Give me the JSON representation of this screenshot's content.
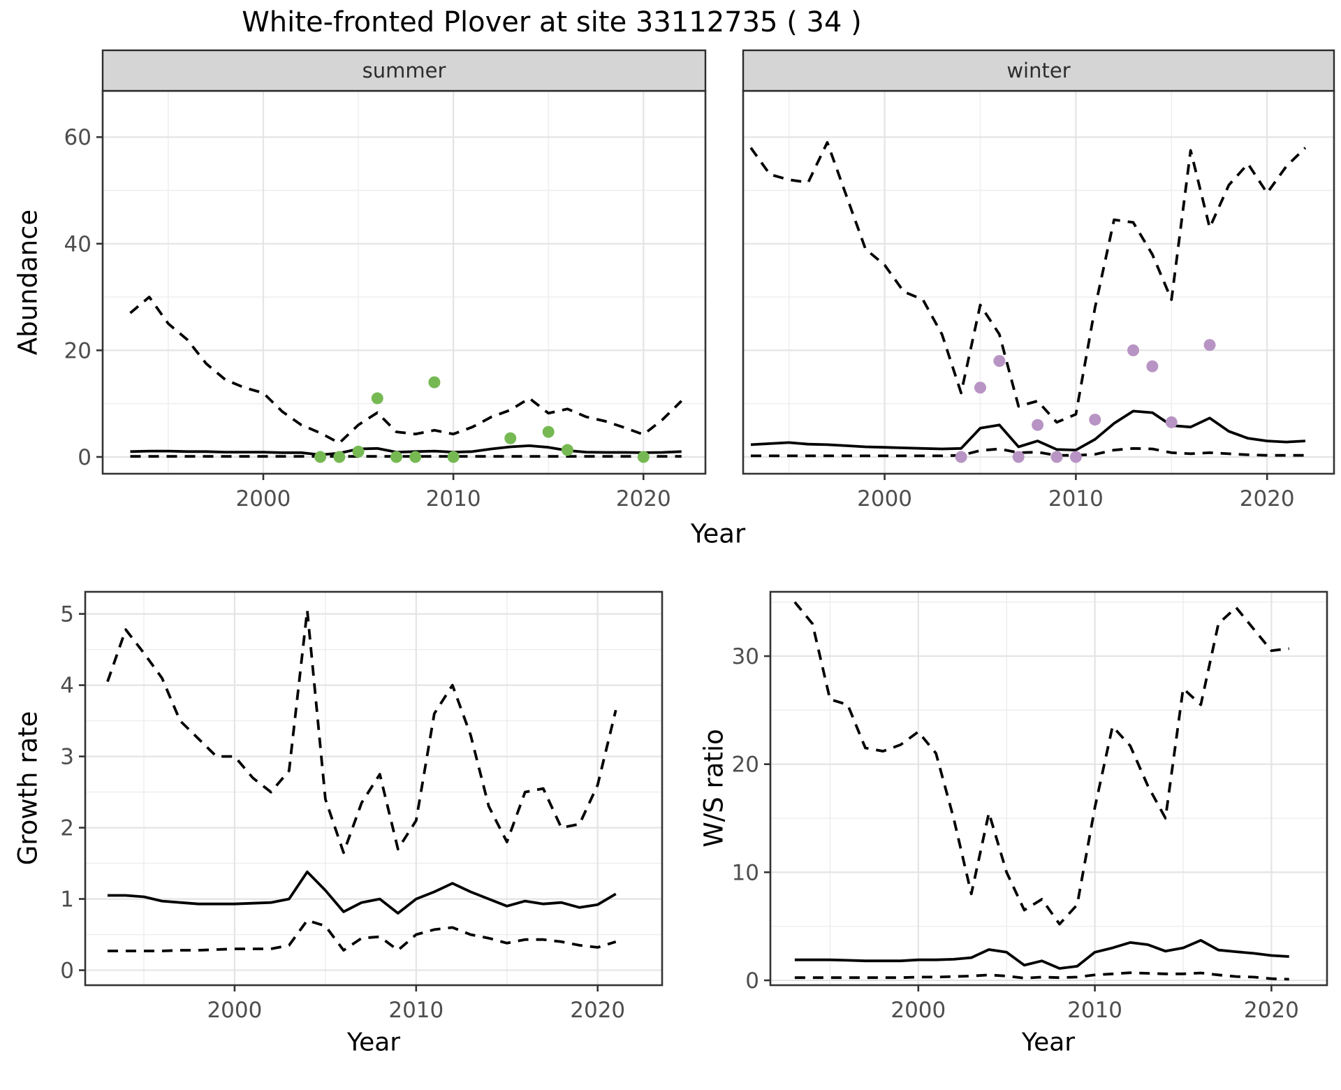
{
  "title": "White-fronted Plover at site 33112735 ( 34 )",
  "colors": {
    "summer_points": "#76b953",
    "winter_points": "#b894c4",
    "line": "#000000",
    "grid_major": "#e4e4e4",
    "grid_minor": "#ededed",
    "strip_bg": "#d5d5d5",
    "border": "#333333",
    "axis_text": "#4d4d4d"
  },
  "top_axis": {
    "ylabel": "Abundance",
    "xlabel": "Year"
  },
  "chart_data": [
    {
      "type": "line",
      "facet": "summer",
      "xlabel": "Year",
      "ylabel": "Abundance",
      "xlim": [
        1991.55,
        2023.26
      ],
      "ylim": [
        -3.15,
        68.68
      ],
      "x_ticks": [
        2000,
        2010,
        2020
      ],
      "x_minor": [
        1995,
        2005,
        2015
      ],
      "y_ticks": [
        0,
        20,
        40,
        60
      ],
      "y_minor": [
        10,
        30,
        50
      ],
      "show_y_labels": true,
      "x": [
        1993,
        1994,
        1995,
        1996,
        1997,
        1998,
        1999,
        2000,
        2001,
        2002,
        2003,
        2004,
        2005,
        2006,
        2007,
        2008,
        2009,
        2010,
        2011,
        2012,
        2013,
        2014,
        2015,
        2016,
        2017,
        2018,
        2019,
        2020,
        2021,
        2022
      ],
      "series": [
        {
          "name": "upper_ci",
          "style": "dashed",
          "values": [
            27,
            30,
            25,
            22,
            17.5,
            14.5,
            13,
            12,
            8.5,
            6,
            4.5,
            2.6,
            6,
            8.3,
            4.7,
            4.3,
            5,
            4.3,
            5.6,
            7.5,
            8.8,
            11,
            8.2,
            9,
            7.5,
            6.7,
            5.5,
            4.2,
            7,
            10.5
          ]
        },
        {
          "name": "median",
          "style": "solid",
          "values": [
            1.0,
            1.1,
            1.1,
            1.0,
            1.0,
            0.9,
            0.9,
            0.9,
            0.8,
            0.8,
            0.4,
            0.7,
            1.5,
            1.6,
            0.9,
            1.0,
            1.1,
            0.9,
            1.0,
            1.5,
            1.9,
            2.1,
            1.8,
            1.2,
            0.9,
            0.85,
            0.85,
            0.8,
            0.85,
            1.0
          ]
        },
        {
          "name": "lower_ci",
          "style": "dashed",
          "values": [
            0.1,
            0.1,
            0.1,
            0.1,
            0.1,
            0.1,
            0.1,
            0.1,
            0.1,
            0.1,
            0.1,
            0.1,
            0.1,
            0.1,
            0.1,
            0.1,
            0.1,
            0.1,
            0.1,
            0.1,
            0.1,
            0.1,
            0.1,
            0.1,
            0.1,
            0.1,
            0.1,
            0.1,
            0.1,
            0.1
          ]
        }
      ],
      "points": {
        "name": "observed-counts",
        "color": "#76b953",
        "x": [
          2003,
          2004,
          2005,
          2006,
          2007,
          2008,
          2009,
          2010,
          2013,
          2015,
          2016,
          2020
        ],
        "y": [
          0,
          0,
          1,
          11,
          0,
          0,
          14,
          0,
          3.5,
          4.7,
          1.3,
          0
        ]
      }
    },
    {
      "type": "line",
      "facet": "winter",
      "xlabel": "Year",
      "ylabel": "Abundance",
      "xlim": [
        1992.6,
        2023.5
      ],
      "ylim": [
        -3.15,
        68.68
      ],
      "x_ticks": [
        2000,
        2010,
        2020
      ],
      "x_minor": [
        1995,
        2005,
        2015
      ],
      "y_ticks": [
        0,
        20,
        40,
        60
      ],
      "y_minor": [
        10,
        30,
        50
      ],
      "show_y_labels": false,
      "x": [
        1993,
        1994,
        1995,
        1996,
        1997,
        1998,
        1999,
        2000,
        2001,
        2002,
        2003,
        2004,
        2005,
        2006,
        2007,
        2008,
        2009,
        2010,
        2011,
        2012,
        2013,
        2014,
        2015,
        2016,
        2017,
        2018,
        2019,
        2020,
        2021,
        2022
      ],
      "series": [
        {
          "name": "upper_ci",
          "style": "dashed",
          "values": [
            58,
            53,
            52,
            51.5,
            59,
            49,
            39,
            36,
            31,
            29.5,
            23,
            12,
            28.5,
            23,
            9.5,
            10.5,
            6.5,
            8,
            28,
            44.5,
            44,
            38,
            29.5,
            57.5,
            43,
            51,
            55,
            49.5,
            54.5,
            58
          ]
        },
        {
          "name": "median",
          "style": "solid",
          "values": [
            2.3,
            2.5,
            2.7,
            2.4,
            2.3,
            2.1,
            1.9,
            1.8,
            1.7,
            1.6,
            1.5,
            1.6,
            5.4,
            6.0,
            1.9,
            3.0,
            1.4,
            1.3,
            3.3,
            6.3,
            8.6,
            8.3,
            5.9,
            5.6,
            7.3,
            4.8,
            3.5,
            3.0,
            2.8,
            3.0
          ]
        },
        {
          "name": "lower_ci",
          "style": "dashed",
          "values": [
            0.2,
            0.2,
            0.2,
            0.2,
            0.2,
            0.2,
            0.2,
            0.2,
            0.2,
            0.2,
            0.2,
            0.3,
            1.2,
            1.5,
            0.8,
            0.9,
            0.3,
            0.3,
            0.5,
            1.3,
            1.6,
            1.5,
            0.8,
            0.6,
            0.8,
            0.6,
            0.4,
            0.3,
            0.3,
            0.3
          ]
        }
      ],
      "points": {
        "name": "observed-counts",
        "color": "#b894c4",
        "x": [
          2004,
          2005,
          2006,
          2007,
          2008,
          2009,
          2010,
          2011,
          2013,
          2014,
          2015,
          2017
        ],
        "y": [
          0,
          13,
          18,
          0,
          6,
          0,
          0,
          7,
          20,
          17,
          6.5,
          21
        ]
      }
    },
    {
      "type": "line",
      "facet": null,
      "xlabel": "Year",
      "ylabel": "Growth rate",
      "xlim": [
        1991.77,
        2023.55
      ],
      "ylim": [
        -0.21,
        5.31
      ],
      "x_ticks": [
        2000,
        2010,
        2020
      ],
      "x_minor": [
        1995,
        2005,
        2015
      ],
      "y_ticks": [
        0,
        1,
        2,
        3,
        4,
        5
      ],
      "y_minor": [
        0.5,
        1.5,
        2.5,
        3.5,
        4.5
      ],
      "show_y_labels": true,
      "x": [
        1993,
        1994,
        1995,
        1996,
        1997,
        1998,
        1999,
        2000,
        2001,
        2002,
        2003,
        2004,
        2005,
        2006,
        2007,
        2008,
        2009,
        2010,
        2011,
        2012,
        2013,
        2014,
        2015,
        2016,
        2017,
        2018,
        2019,
        2020,
        2021
      ],
      "series": [
        {
          "name": "upper_ci",
          "style": "dashed",
          "values": [
            4.05,
            4.78,
            4.45,
            4.1,
            3.5,
            3.25,
            3.0,
            3.0,
            2.7,
            2.5,
            2.8,
            5.05,
            2.4,
            1.65,
            2.35,
            2.75,
            1.7,
            2.1,
            3.6,
            4.0,
            3.3,
            2.3,
            1.8,
            2.5,
            2.55,
            2.0,
            2.05,
            2.6,
            3.65
          ]
        },
        {
          "name": "median",
          "style": "solid",
          "values": [
            1.05,
            1.05,
            1.03,
            0.97,
            0.95,
            0.93,
            0.93,
            0.93,
            0.94,
            0.95,
            1.0,
            1.38,
            1.12,
            0.82,
            0.95,
            1.0,
            0.8,
            1.0,
            1.1,
            1.22,
            1.1,
            1.0,
            0.9,
            0.97,
            0.93,
            0.95,
            0.88,
            0.92,
            1.07
          ]
        },
        {
          "name": "lower_ci",
          "style": "dashed",
          "values": [
            0.27,
            0.27,
            0.27,
            0.27,
            0.28,
            0.28,
            0.29,
            0.3,
            0.3,
            0.3,
            0.35,
            0.7,
            0.62,
            0.28,
            0.45,
            0.47,
            0.28,
            0.5,
            0.57,
            0.6,
            0.5,
            0.45,
            0.38,
            0.43,
            0.43,
            0.4,
            0.35,
            0.32,
            0.4
          ]
        }
      ],
      "points": null
    },
    {
      "type": "line",
      "facet": null,
      "xlabel": "Year",
      "ylabel": "W/S ratio",
      "xlim": [
        1991.62,
        2023.15
      ],
      "ylim": [
        -0.45,
        35.95
      ],
      "x_ticks": [
        2000,
        2010,
        2020
      ],
      "x_minor": [
        1995,
        2005,
        2015
      ],
      "y_ticks": [
        0,
        10,
        20,
        30
      ],
      "y_minor": [
        5,
        15,
        25,
        35
      ],
      "show_y_labels": true,
      "x": [
        1993,
        1994,
        1995,
        1996,
        1997,
        1998,
        1999,
        2000,
        2001,
        2002,
        2003,
        2004,
        2005,
        2006,
        2007,
        2008,
        2009,
        2010,
        2011,
        2012,
        2013,
        2014,
        2015,
        2016,
        2017,
        2018,
        2019,
        2020,
        2021
      ],
      "series": [
        {
          "name": "upper_ci",
          "style": "dashed",
          "values": [
            35,
            33,
            26,
            25.5,
            21.5,
            21.2,
            21.8,
            23,
            21,
            15,
            8,
            15.5,
            10,
            6.5,
            7.5,
            5.2,
            7,
            16,
            23.5,
            21.7,
            18,
            15,
            27,
            25.5,
            33,
            34.5,
            32.5,
            30.5,
            30.7
          ]
        },
        {
          "name": "median",
          "style": "solid",
          "values": [
            1.9,
            1.9,
            1.9,
            1.85,
            1.8,
            1.8,
            1.8,
            1.9,
            1.9,
            1.95,
            2.1,
            2.85,
            2.6,
            1.4,
            1.8,
            1.1,
            1.3,
            2.6,
            3.0,
            3.5,
            3.3,
            2.7,
            3.0,
            3.7,
            2.8,
            2.65,
            2.5,
            2.3,
            2.2
          ]
        },
        {
          "name": "lower_ci",
          "style": "dashed",
          "values": [
            0.25,
            0.25,
            0.25,
            0.25,
            0.25,
            0.25,
            0.25,
            0.3,
            0.3,
            0.35,
            0.4,
            0.5,
            0.4,
            0.2,
            0.3,
            0.25,
            0.3,
            0.5,
            0.6,
            0.7,
            0.65,
            0.6,
            0.6,
            0.68,
            0.5,
            0.35,
            0.3,
            0.15,
            0.1
          ]
        }
      ],
      "points": null
    }
  ]
}
